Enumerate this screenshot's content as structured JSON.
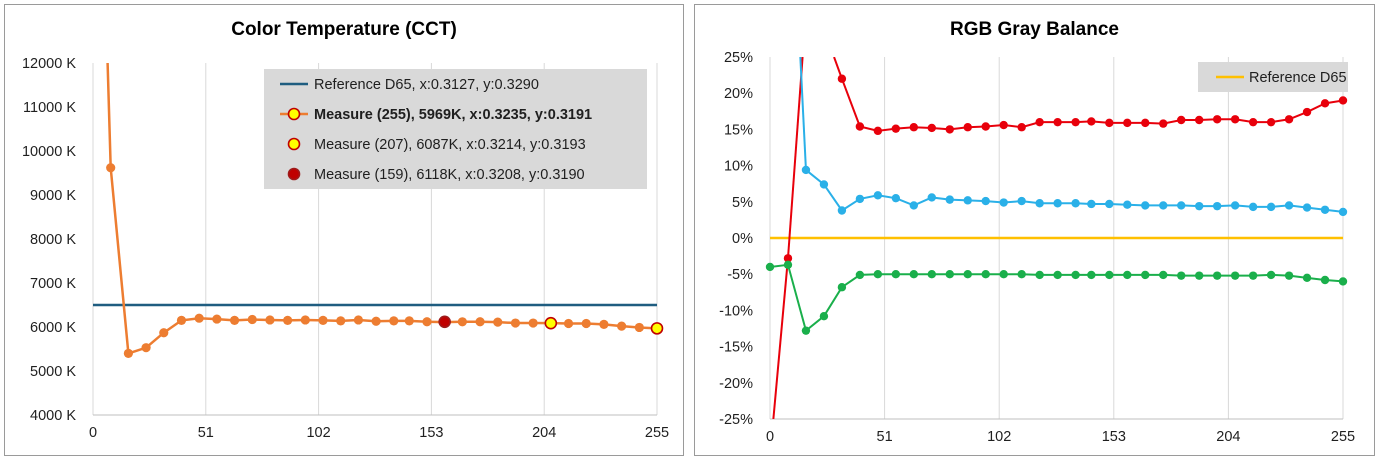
{
  "chart_data": [
    {
      "id": "cct",
      "type": "line",
      "title": "Color Temperature (CCT)",
      "xlabel": "",
      "ylabel": "",
      "xlim": [
        0,
        255
      ],
      "ylim": [
        4000,
        12000
      ],
      "x_ticks": [
        0,
        51,
        102,
        153,
        204,
        255
      ],
      "y_ticks": [
        4000,
        5000,
        6000,
        7000,
        8000,
        9000,
        10000,
        11000,
        12000
      ],
      "y_tick_labels": [
        "4000 K",
        "5000 K",
        "6000 K",
        "7000 K",
        "8000 K",
        "9000 K",
        "10000 K",
        "11000 K",
        "12000 K"
      ],
      "x_tick_labels": [
        "0",
        "51",
        "102",
        "153",
        "204",
        "255"
      ],
      "grid": "vertical",
      "legend_position": "top-right",
      "colors": {
        "reference": "#1f5d80",
        "measure": "#ed7d31",
        "highlight_fill": "#ffff00",
        "highlight_dark": "#c00000"
      },
      "reference": {
        "name": "Reference D65, x:0.3127, y:0.3290",
        "value": 6500
      },
      "series": [
        {
          "name": "Measure (255), 5969K, x:0.3235, y:0.3191",
          "x": [
            8,
            16,
            24,
            32,
            40,
            48,
            56,
            64,
            72,
            80,
            88,
            96,
            104,
            112,
            120,
            128,
            136,
            143,
            151,
            159,
            167,
            175,
            183,
            191,
            199,
            207,
            215,
            223,
            231,
            239,
            247,
            255
          ],
          "y": [
            9620,
            5400,
            5530,
            5870,
            6150,
            6200,
            6180,
            6150,
            6170,
            6160,
            6150,
            6160,
            6150,
            6140,
            6160,
            6130,
            6140,
            6140,
            6120,
            6110,
            6118,
            6120,
            6110,
            6090,
            6090,
            6087,
            6080,
            6080,
            6060,
            6020,
            5990,
            5969
          ],
          "lead_in": {
            "x": [
              6.6,
              8
            ],
            "y": [
              12000,
              9620
            ]
          }
        }
      ],
      "highlights": [
        {
          "name": "Measure (207), 6087K, x:0.3214, y:0.3193",
          "x": 207,
          "y": 6087,
          "style": "yellow"
        },
        {
          "name": "Measure (159), 6118K, x:0.3208, y:0.3190",
          "x": 159,
          "y": 6118,
          "style": "red"
        },
        {
          "name": "Measure (255), 5969K, x:0.3235, y:0.3191",
          "x": 255,
          "y": 5969,
          "style": "yellow"
        }
      ]
    },
    {
      "id": "rgb",
      "type": "line",
      "title": "RGB Gray Balance",
      "xlabel": "",
      "ylabel": "",
      "xlim": [
        0,
        255
      ],
      "ylim": [
        -25,
        25
      ],
      "x_ticks": [
        0,
        51,
        102,
        153,
        204,
        255
      ],
      "x_tick_labels": [
        "0",
        "51",
        "102",
        "153",
        "204",
        "255"
      ],
      "y_ticks": [
        -25,
        -20,
        -15,
        -10,
        -5,
        0,
        5,
        10,
        15,
        20,
        25
      ],
      "y_tick_labels": [
        "-25%",
        "-20%",
        "-15%",
        "-10%",
        "-5%",
        "0%",
        "5%",
        "10%",
        "15%",
        "20%",
        "25%"
      ],
      "grid": "vertical",
      "legend_position": "top-right",
      "reference": {
        "name": "Reference D65",
        "value": 0,
        "color": "#ffc000"
      },
      "series": [
        {
          "name": "Red",
          "color": "#e8000b",
          "x": [
            8,
            32,
            40,
            48,
            56,
            64,
            72,
            80,
            88,
            96,
            104,
            112,
            120,
            128,
            136,
            143,
            151,
            159,
            167,
            175,
            183,
            191,
            199,
            207,
            215,
            223,
            231,
            239,
            247,
            255
          ],
          "y": [
            -2.8,
            22.0,
            15.4,
            14.8,
            15.1,
            15.3,
            15.2,
            15.0,
            15.3,
            15.4,
            15.6,
            15.3,
            16.0,
            16.0,
            16.0,
            16.1,
            15.9,
            15.9,
            15.9,
            15.8,
            16.3,
            16.3,
            16.4,
            16.4,
            16.0,
            16.0,
            16.4,
            17.4,
            18.6,
            19.0
          ],
          "lead_in": {
            "x": [
              1.5,
              8
            ],
            "y": [
              -25,
              -2.8
            ]
          },
          "lead_out": {
            "x": [
              8,
              14.5
            ],
            "y": [
              -2.8,
              25
            ]
          },
          "lead_in2": {
            "x": [
              28.5,
              32
            ],
            "y": [
              25,
              22.0
            ]
          }
        },
        {
          "name": "Blue",
          "color": "#2ab0e8",
          "x": [
            16,
            24,
            32,
            40,
            48,
            56,
            64,
            72,
            80,
            88,
            96,
            104,
            112,
            120,
            128,
            136,
            143,
            151,
            159,
            167,
            175,
            183,
            191,
            199,
            207,
            215,
            223,
            231,
            239,
            247,
            255
          ],
          "y": [
            9.4,
            7.4,
            3.8,
            5.4,
            5.9,
            5.5,
            4.5,
            5.6,
            5.3,
            5.2,
            5.1,
            4.9,
            5.1,
            4.8,
            4.8,
            4.8,
            4.7,
            4.7,
            4.6,
            4.5,
            4.5,
            4.5,
            4.4,
            4.4,
            4.5,
            4.3,
            4.3,
            4.5,
            4.2,
            3.9,
            3.6
          ],
          "lead_in": {
            "x": [
              13.5,
              16
            ],
            "y": [
              25,
              9.4
            ]
          }
        },
        {
          "name": "Green",
          "color": "#1aaf4b",
          "x": [
            0,
            8,
            16,
            24,
            32,
            40,
            48,
            56,
            64,
            72,
            80,
            88,
            96,
            104,
            112,
            120,
            128,
            136,
            143,
            151,
            159,
            167,
            175,
            183,
            191,
            199,
            207,
            215,
            223,
            231,
            239,
            247,
            255
          ],
          "y": [
            -4.0,
            -3.7,
            -12.8,
            -10.8,
            -6.8,
            -5.1,
            -5.0,
            -5.0,
            -5.0,
            -5.0,
            -5.0,
            -5.0,
            -5.0,
            -5.0,
            -5.0,
            -5.1,
            -5.1,
            -5.1,
            -5.1,
            -5.1,
            -5.1,
            -5.1,
            -5.1,
            -5.2,
            -5.2,
            -5.2,
            -5.2,
            -5.2,
            -5.1,
            -5.2,
            -5.5,
            -5.8,
            -6.0
          ]
        }
      ]
    }
  ]
}
